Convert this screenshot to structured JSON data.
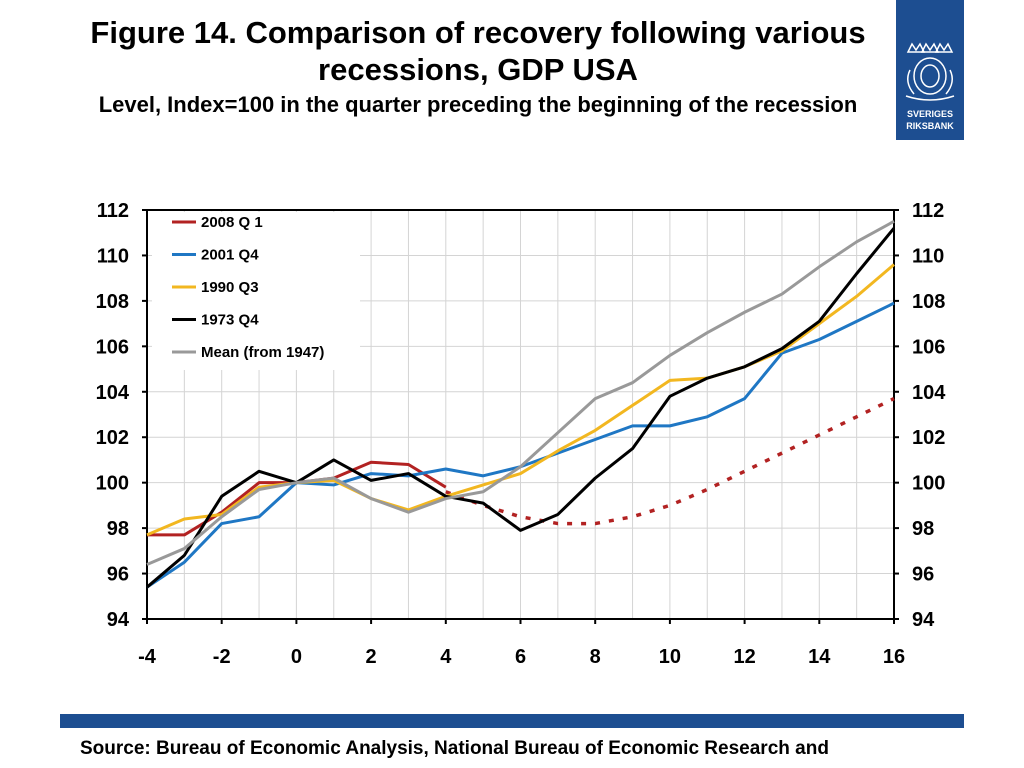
{
  "title": "Figure 14. Comparison of recovery following various recessions, GDP USA",
  "subtitle": "Level, Index=100 in the quarter preceding the beginning of the recession",
  "logo": {
    "text_line1": "SVERIGES",
    "text_line2": "RIKSBANK",
    "color": "#1d4e91"
  },
  "source": "Source: Bureau of Economic Analysis, National Bureau of Economic Research and",
  "chart_data": {
    "type": "line",
    "title": "Figure 14. Comparison of recovery following various recessions, GDP USA",
    "subtitle": "Level, Index=100 in the quarter preceding the beginning of the recession",
    "xlim": [
      -4,
      16
    ],
    "ylim": [
      94,
      112
    ],
    "x_ticks": [
      -4,
      -2,
      0,
      2,
      4,
      6,
      8,
      10,
      12,
      14,
      16
    ],
    "y_ticks": [
      94,
      96,
      98,
      100,
      102,
      104,
      106,
      108,
      110,
      112
    ],
    "grid": true,
    "legend_position": "top-left",
    "series": [
      {
        "name": "2008 Q 1",
        "color": "#b22222",
        "dash": false,
        "x": [
          -4,
          -3,
          -2,
          -1,
          0,
          1,
          2,
          3,
          4
        ],
        "y": [
          97.7,
          97.7,
          98.7,
          100.0,
          100.0,
          100.2,
          100.9,
          100.8,
          99.8
        ]
      },
      {
        "name": "",
        "color": "#b22222",
        "dash": true,
        "x": [
          4,
          5,
          6,
          7,
          8,
          9,
          10,
          11,
          12,
          13,
          14,
          15,
          16
        ],
        "y": [
          99.6,
          99.0,
          98.5,
          98.2,
          98.2,
          98.5,
          99.0,
          99.7,
          100.5,
          101.3,
          102.1,
          102.9,
          103.7
        ]
      },
      {
        "name": "2001 Q4",
        "color": "#1f77c4",
        "dash": false,
        "x": [
          -4,
          -3,
          -2,
          -1,
          0,
          1,
          2,
          3,
          4,
          5,
          6,
          7,
          8,
          9,
          10,
          11,
          12,
          13,
          14,
          15,
          16
        ],
        "y": [
          95.4,
          96.5,
          98.2,
          98.5,
          100.0,
          99.9,
          100.4,
          100.3,
          100.6,
          100.3,
          100.7,
          101.3,
          101.9,
          102.5,
          102.5,
          102.9,
          103.7,
          105.7,
          106.3,
          107.1,
          107.9
        ]
      },
      {
        "name": "1990 Q3",
        "color": "#f2b720",
        "dash": false,
        "x": [
          -4,
          -3,
          -2,
          -1,
          0,
          1,
          2,
          3,
          4,
          5,
          6,
          7,
          8,
          9,
          10,
          11,
          12,
          13,
          14,
          15,
          16
        ],
        "y": [
          97.7,
          98.4,
          98.6,
          99.8,
          100.0,
          100.1,
          99.3,
          98.8,
          99.4,
          99.9,
          100.4,
          101.4,
          102.3,
          103.4,
          104.5,
          104.6,
          105.1,
          105.8,
          107.0,
          108.2,
          109.6
        ]
      },
      {
        "name": "1973 Q4",
        "color": "#000000",
        "dash": false,
        "x": [
          -4,
          -3,
          -2,
          -1,
          0,
          1,
          2,
          3,
          4,
          5,
          6,
          7,
          8,
          9,
          10,
          11,
          12,
          13,
          14,
          15,
          16
        ],
        "y": [
          95.4,
          96.8,
          99.4,
          100.5,
          100.0,
          101.0,
          100.1,
          100.4,
          99.4,
          99.1,
          97.9,
          98.6,
          100.2,
          101.5,
          103.8,
          104.6,
          105.1,
          105.9,
          107.1,
          109.2,
          111.2
        ]
      },
      {
        "name": "Mean (from 1947)",
        "color": "#999999",
        "dash": false,
        "x": [
          -4,
          -3,
          -2,
          -1,
          0,
          1,
          2,
          3,
          4,
          5,
          6,
          7,
          8,
          9,
          10,
          11,
          12,
          13,
          14,
          15,
          16
        ],
        "y": [
          96.4,
          97.1,
          98.5,
          99.7,
          100.0,
          100.2,
          99.3,
          98.7,
          99.3,
          99.6,
          100.7,
          102.2,
          103.7,
          104.4,
          105.6,
          106.6,
          107.5,
          108.3,
          109.5,
          110.6,
          111.5
        ]
      }
    ]
  }
}
